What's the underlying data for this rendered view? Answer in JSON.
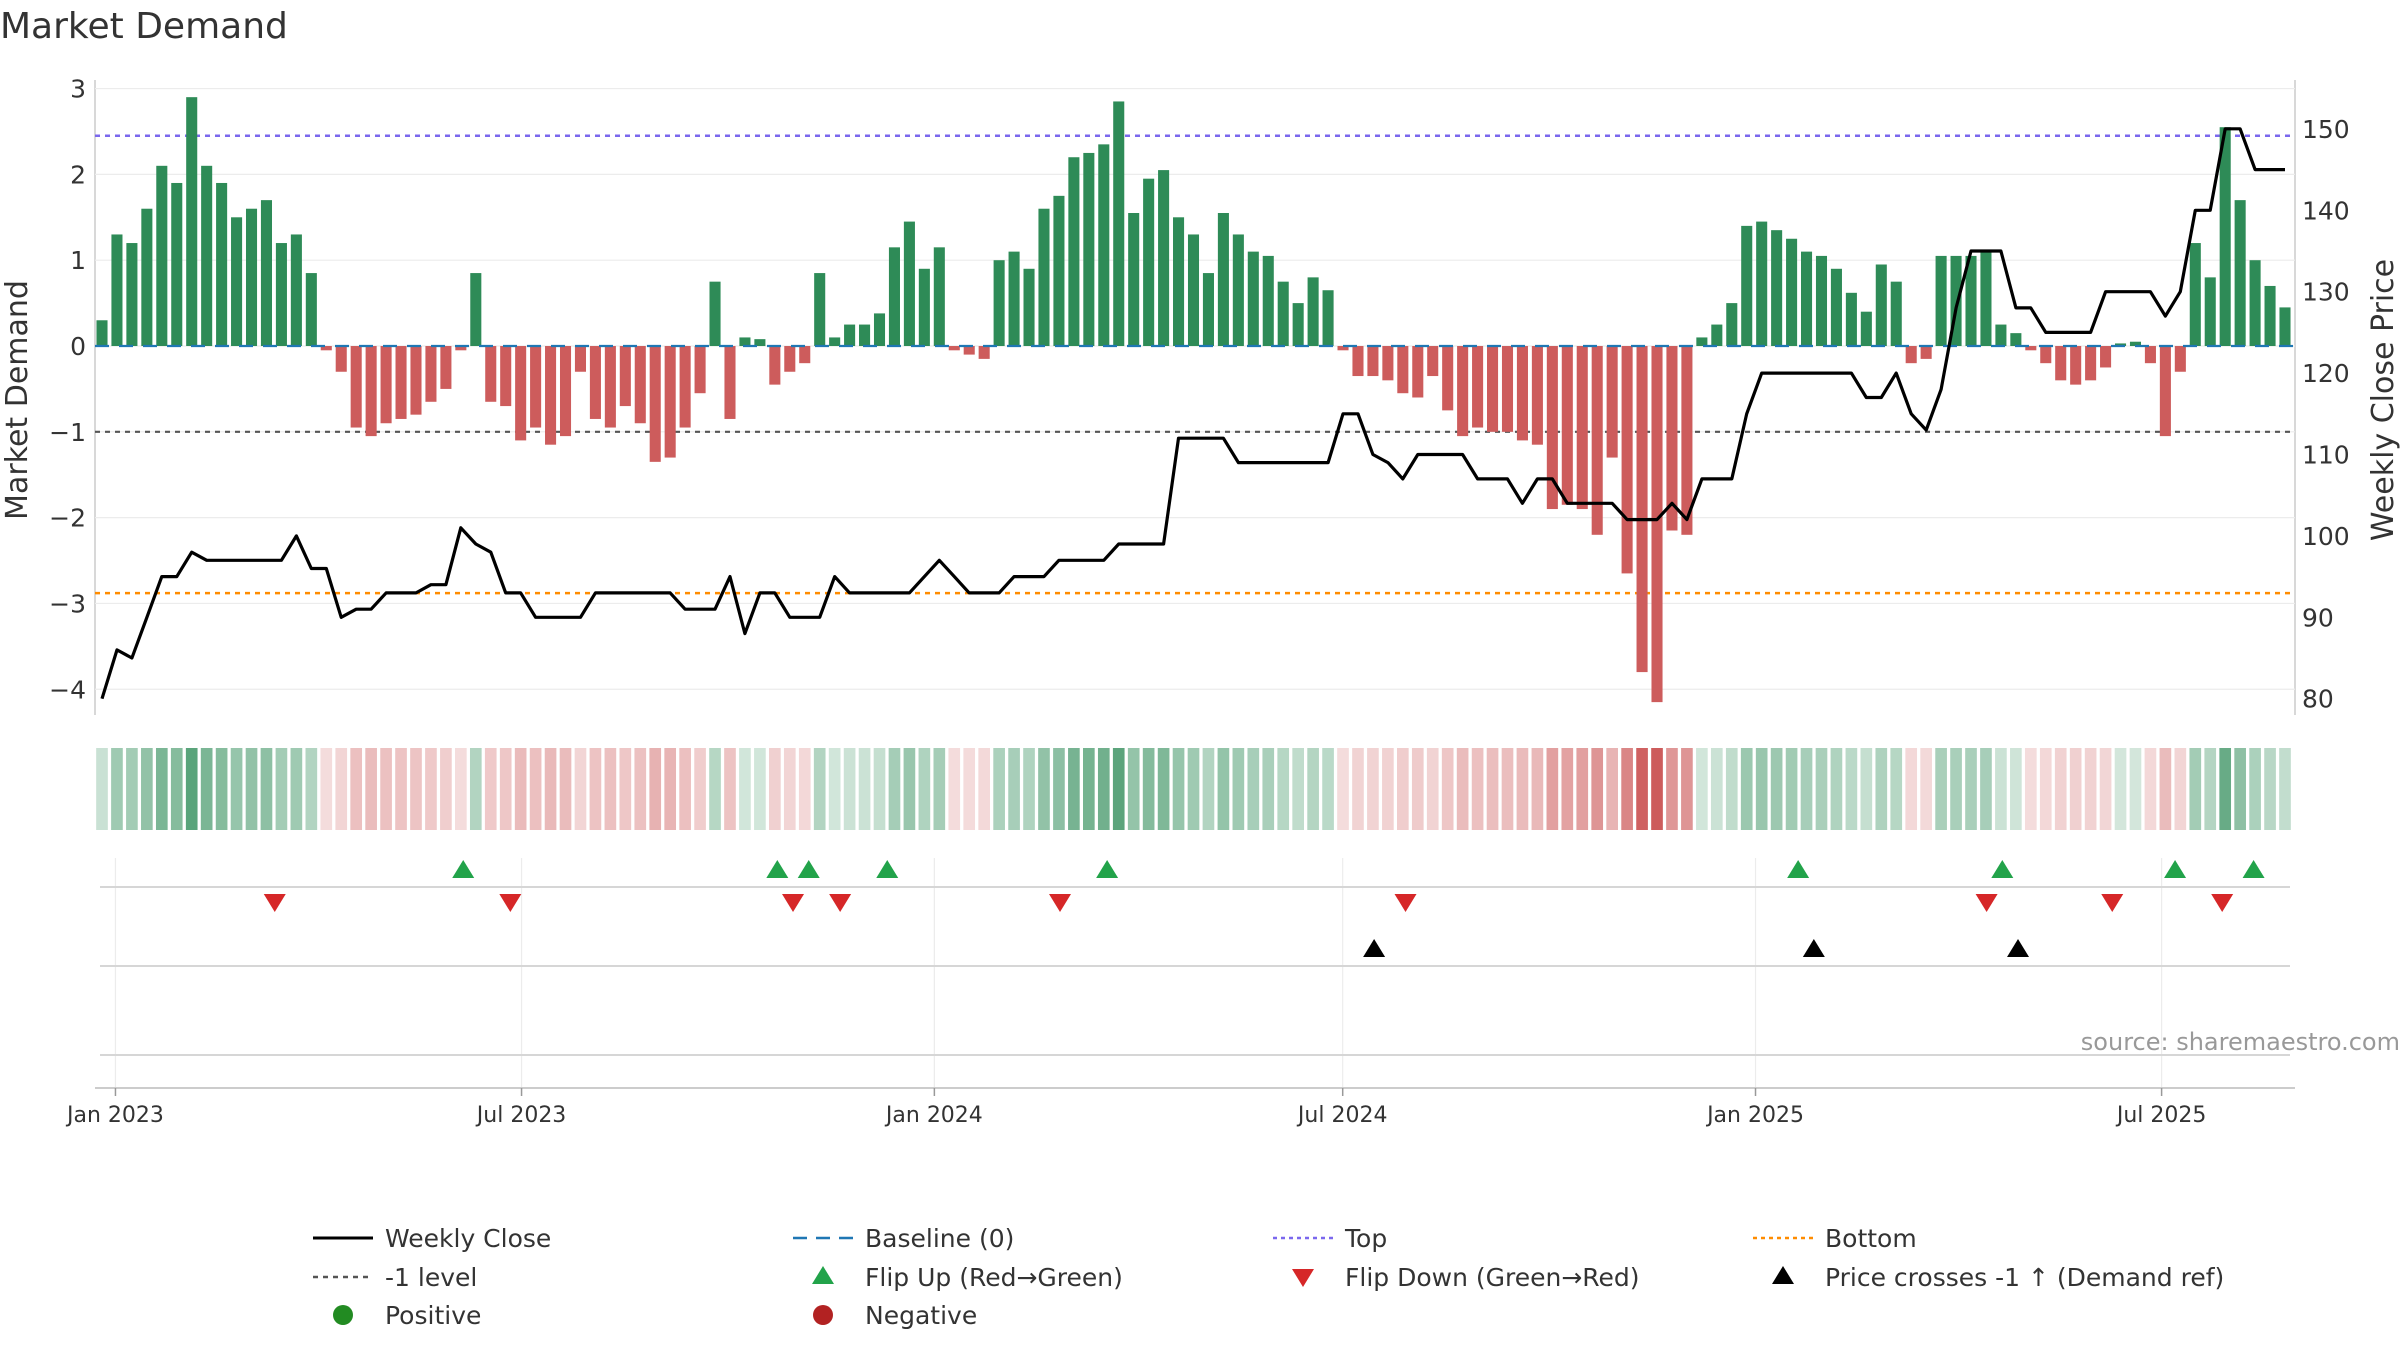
{
  "chart_data": {
    "type": "bar",
    "title": "Market Demand",
    "ylabel": "Market Demand",
    "y2label": "Weekly Close Price",
    "ylim": [
      -4.3,
      3.1
    ],
    "y2lim": [
      78,
      156
    ],
    "yticks": [
      -4,
      -3,
      -2,
      -1,
      0,
      1,
      2,
      3
    ],
    "yticklabels": [
      "−4",
      "−3",
      "−2",
      "−1",
      "0",
      "1",
      "2",
      "3"
    ],
    "y2ticks": [
      80,
      90,
      100,
      110,
      120,
      130,
      140,
      150
    ],
    "x_start": "2022-12-26",
    "x_end": "2025-08-25",
    "xticks": [
      {
        "date": "2023-01-01",
        "label": "Jan 2023"
      },
      {
        "date": "2023-07-01",
        "label": "Jul 2023"
      },
      {
        "date": "2024-01-01",
        "label": "Jan 2024"
      },
      {
        "date": "2024-07-01",
        "label": "Jul 2024"
      },
      {
        "date": "2025-01-01",
        "label": "Jan 2025"
      },
      {
        "date": "2025-07-01",
        "label": "Jul 2025"
      }
    ],
    "reference_lines": {
      "baseline": 0,
      "level": -1,
      "top": 2.45,
      "bottom": -2.88
    },
    "demand": [
      0.3,
      1.3,
      1.2,
      1.6,
      2.1,
      1.9,
      2.9,
      2.1,
      1.9,
      1.5,
      1.6,
      1.7,
      1.2,
      1.3,
      0.85,
      -0.05,
      -0.3,
      -0.95,
      -1.05,
      -0.9,
      -0.85,
      -0.8,
      -0.65,
      -0.5,
      -0.05,
      0.85,
      -0.65,
      -0.7,
      -1.1,
      -0.95,
      -1.15,
      -1.05,
      -0.3,
      -0.85,
      -0.95,
      -0.7,
      -0.9,
      -1.35,
      -1.3,
      -0.95,
      -0.55,
      0.75,
      -0.85,
      0.1,
      0.08,
      -0.45,
      -0.3,
      -0.2,
      0.85,
      0.1,
      0.25,
      0.25,
      0.38,
      1.15,
      1.45,
      0.9,
      1.15,
      -0.05,
      -0.1,
      -0.15,
      1.0,
      1.1,
      0.9,
      1.6,
      1.75,
      2.2,
      2.25,
      2.35,
      2.85,
      1.55,
      1.95,
      2.05,
      1.5,
      1.3,
      0.85,
      1.55,
      1.3,
      1.1,
      1.05,
      0.75,
      0.5,
      0.8,
      0.65,
      -0.05,
      -0.35,
      -0.35,
      -0.4,
      -0.55,
      -0.6,
      -0.35,
      -0.75,
      -1.05,
      -0.95,
      -1.0,
      -1.0,
      -1.1,
      -1.15,
      -1.9,
      -1.85,
      -1.9,
      -2.2,
      -1.3,
      -2.65,
      -3.8,
      -4.15,
      -2.15,
      -2.2,
      0.1,
      0.25,
      0.5,
      1.4,
      1.45,
      1.35,
      1.25,
      1.1,
      1.05,
      0.9,
      0.62,
      0.4,
      0.95,
      0.75,
      -0.2,
      -0.15,
      1.05,
      1.05,
      1.05,
      1.1,
      0.25,
      0.15,
      -0.05,
      -0.2,
      -0.4,
      -0.45,
      -0.4,
      -0.25,
      0.03,
      0.05,
      -0.2,
      -1.05,
      -0.3,
      1.2,
      0.8,
      2.55,
      1.7,
      1.0,
      0.7,
      0.45
    ],
    "close": [
      80,
      86,
      85,
      90,
      95,
      95,
      98,
      97,
      97,
      97,
      97,
      97,
      97,
      100,
      96,
      96,
      90,
      91,
      91,
      93,
      93,
      93,
      94,
      94,
      101,
      99,
      98,
      93,
      93,
      90,
      90,
      90,
      90,
      93,
      93,
      93,
      93,
      93,
      93,
      91,
      91,
      91,
      95,
      88,
      93,
      93,
      90,
      90,
      90,
      95,
      93,
      93,
      93,
      93,
      93,
      95,
      97,
      95,
      93,
      93,
      93,
      95,
      95,
      95,
      97,
      97,
      97,
      97,
      99,
      99,
      99,
      99,
      112,
      112,
      112,
      112,
      109,
      109,
      109,
      109,
      109,
      109,
      109,
      115,
      115,
      110,
      109,
      107,
      110,
      110,
      110,
      110,
      107,
      107,
      107,
      104,
      107,
      107,
      104,
      104,
      104,
      104,
      102,
      102,
      102,
      104,
      102,
      107,
      107,
      107,
      115,
      120,
      120,
      120,
      120,
      120,
      120,
      120,
      117,
      117,
      120,
      115,
      113,
      118,
      128,
      135,
      135,
      135,
      128,
      128,
      125,
      125,
      125,
      125,
      130,
      130,
      130,
      130,
      127,
      130,
      140,
      140,
      150,
      150,
      145,
      145,
      145
    ],
    "series": [
      {
        "name": "Weekly Close"
      },
      {
        "name": "Baseline (0)"
      },
      {
        "name": "Top"
      },
      {
        "name": "Bottom"
      },
      {
        "name": "-1 level"
      },
      {
        "name": "Flip Up (Red→Green)"
      },
      {
        "name": "Flip Down (Green→Red)"
      },
      {
        "name": "Price crosses -1 ↑ (Demand ref)"
      },
      {
        "name": "Positive"
      },
      {
        "name": "Negative"
      }
    ],
    "flip_up_dates": [
      "2023-06-05",
      "2023-10-23",
      "2023-11-06",
      "2023-12-11",
      "2024-03-18",
      "2025-01-20",
      "2025-04-21",
      "2025-07-07",
      "2025-08-11"
    ],
    "flip_down_dates": [
      "2023-03-13",
      "2023-06-26",
      "2023-10-30",
      "2023-11-20",
      "2024-02-26",
      "2024-07-29",
      "2025-04-14",
      "2025-06-09",
      "2025-07-28"
    ],
    "price_cross_dates": [
      "2024-07-15",
      "2025-01-27",
      "2025-04-28"
    ],
    "legend_position": "bottom"
  },
  "colors": {
    "positive": "#2e8b57",
    "negative": "#cd5c5c",
    "close": "#000000",
    "baseline": "#1f77b4",
    "top": "#7b68ee",
    "bottom": "#ff8c00",
    "level": "#555555",
    "flip_up": "#22a34a",
    "flip_down": "#d62728",
    "cross": "#000000",
    "legend_positive": "#228b22",
    "legend_negative": "#b22222"
  },
  "source": "source: sharemaestro.com",
  "legend": {
    "weekly_close": "Weekly Close",
    "baseline": "Baseline (0)",
    "top": "Top",
    "bottom": "Bottom",
    "level": "-1 level",
    "flip_up": "Flip Up (Red→Green)",
    "flip_down": "Flip Down (Green→Red)",
    "cross": "Price crosses -1 ↑ (Demand ref)",
    "positive": "Positive",
    "negative": "Negative"
  }
}
